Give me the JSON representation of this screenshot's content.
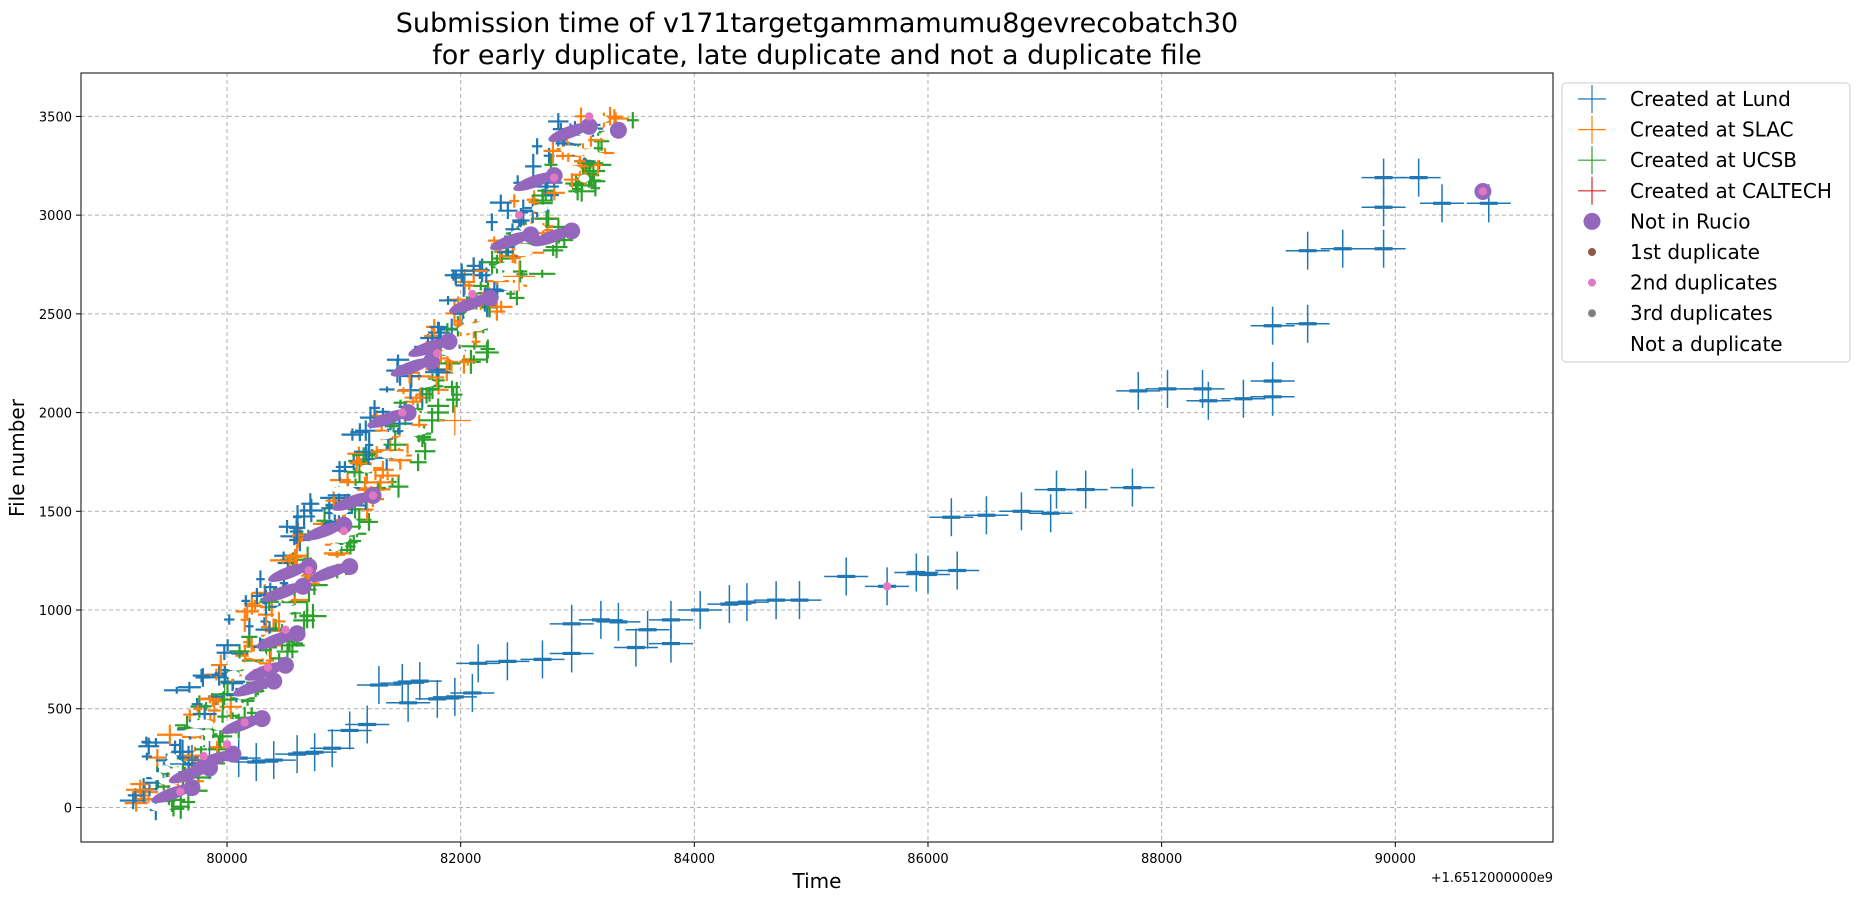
{
  "chart_data": {
    "type": "scatter",
    "title_lines": [
      "Submission time of v171targetgammamumu8gevrecobatch30",
      "for early duplicate, late duplicate and not a duplicate file"
    ],
    "xlabel": "Time",
    "ylabel": "File number",
    "x_offset_label": "+1.6512000000e9",
    "xlim": [
      78750,
      91350
    ],
    "ylim": [
      -175,
      3720
    ],
    "x_ticks": [
      80000,
      82000,
      84000,
      86000,
      88000,
      90000
    ],
    "x_tick_labels": [
      "80000",
      "82000",
      "84000",
      "86000",
      "88000",
      "90000"
    ],
    "y_ticks": [
      0,
      500,
      1000,
      1500,
      2000,
      2500,
      3000,
      3500
    ],
    "y_tick_labels": [
      "0",
      "500",
      "1000",
      "1500",
      "2000",
      "2500",
      "3000",
      "3500"
    ],
    "grid": true,
    "legend_position": "outside-right",
    "colors": {
      "lund": "#1f77b4",
      "slac": "#ff7f0e",
      "ucsb": "#2ca02c",
      "caltech": "#d62728",
      "not_in_rucio": "#9467bd",
      "first_duplicate": "#8c564b",
      "second_duplicate": "#e377c2",
      "third_duplicate": "#7f7f7f",
      "grid": "#b0b0b0"
    },
    "legend": [
      {
        "label": "Created at Lund",
        "marker": "plus",
        "color": "#1f77b4"
      },
      {
        "label": "Created at SLAC",
        "marker": "plus",
        "color": "#ff7f0e"
      },
      {
        "label": "Created at UCSB",
        "marker": "plus",
        "color": "#2ca02c"
      },
      {
        "label": "Created at CALTECH",
        "marker": "plus",
        "color": "#d62728"
      },
      {
        "label": "Not in Rucio",
        "marker": "big-dot",
        "color": "#9467bd"
      },
      {
        "label": "1st duplicate",
        "marker": "dot",
        "color": "#8c564b"
      },
      {
        "label": "2nd duplicates",
        "marker": "dot",
        "color": "#e377c2"
      },
      {
        "label": "3rd duplicates",
        "marker": "dot",
        "color": "#7f7f7f"
      },
      {
        "label": "Not a duplicate",
        "marker": "none",
        "color": "#ffffff"
      }
    ],
    "early_band": {
      "x_start": 79300,
      "x_end": 83200,
      "y_start": 0,
      "y_end": 3500,
      "sites": [
        "lund",
        "slac",
        "ucsb"
      ]
    },
    "late_series": {
      "site": "lund",
      "points": [
        [
          79700,
          220
        ],
        [
          79850,
          240
        ],
        [
          80100,
          250
        ],
        [
          80250,
          230
        ],
        [
          80400,
          240
        ],
        [
          80600,
          270
        ],
        [
          80750,
          280
        ],
        [
          80900,
          300
        ],
        [
          81050,
          390
        ],
        [
          81200,
          420
        ],
        [
          81300,
          620
        ],
        [
          81500,
          630
        ],
        [
          81650,
          640
        ],
        [
          81550,
          530
        ],
        [
          81800,
          550
        ],
        [
          81950,
          560
        ],
        [
          82100,
          580
        ],
        [
          82150,
          730
        ],
        [
          82400,
          740
        ],
        [
          82700,
          750
        ],
        [
          82950,
          780
        ],
        [
          82950,
          930
        ],
        [
          83200,
          950
        ],
        [
          83350,
          940
        ],
        [
          83500,
          810
        ],
        [
          83600,
          900
        ],
        [
          83800,
          950
        ],
        [
          83800,
          830
        ],
        [
          84050,
          1000
        ],
        [
          84300,
          1030
        ],
        [
          84450,
          1040
        ],
        [
          84700,
          1050
        ],
        [
          84900,
          1050
        ],
        [
          85300,
          1170
        ],
        [
          85650,
          1120
        ],
        [
          85900,
          1190
        ],
        [
          86000,
          1180
        ],
        [
          86250,
          1200
        ],
        [
          86200,
          1470
        ],
        [
          86500,
          1480
        ],
        [
          86800,
          1500
        ],
        [
          87050,
          1490
        ],
        [
          87100,
          1610
        ],
        [
          87350,
          1610
        ],
        [
          87750,
          1620
        ],
        [
          87800,
          2110
        ],
        [
          88050,
          2120
        ],
        [
          88350,
          2120
        ],
        [
          88400,
          2060
        ],
        [
          88700,
          2070
        ],
        [
          88950,
          2080
        ],
        [
          88950,
          2160
        ],
        [
          88950,
          2440
        ],
        [
          89250,
          2450
        ],
        [
          89250,
          2820
        ],
        [
          89550,
          2830
        ],
        [
          89900,
          2830
        ],
        [
          89900,
          3040
        ],
        [
          89900,
          3190
        ],
        [
          90200,
          3190
        ],
        [
          90400,
          3060
        ],
        [
          90800,
          3060
        ]
      ]
    },
    "slac_outliers": [
      [
        81950,
        1960
      ],
      [
        82500,
        2690
      ]
    ],
    "not_in_rucio_points": [
      [
        79700,
        100
      ],
      [
        79850,
        200
      ],
      [
        80050,
        270
      ],
      [
        80300,
        450
      ],
      [
        80400,
        640
      ],
      [
        80500,
        720
      ],
      [
        80600,
        880
      ],
      [
        80650,
        1120
      ],
      [
        80700,
        1220
      ],
      [
        81050,
        1220
      ],
      [
        81000,
        1430
      ],
      [
        81250,
        1580
      ],
      [
        81550,
        2000
      ],
      [
        81750,
        2260
      ],
      [
        81900,
        2360
      ],
      [
        82250,
        2580
      ],
      [
        82600,
        2900
      ],
      [
        82950,
        2920
      ],
      [
        82800,
        3200
      ],
      [
        83100,
        3450
      ],
      [
        83350,
        3430
      ],
      [
        90750,
        3120
      ]
    ],
    "second_duplicate_points": [
      [
        79600,
        80
      ],
      [
        79800,
        260
      ],
      [
        80000,
        320
      ],
      [
        80150,
        430
      ],
      [
        80350,
        710
      ],
      [
        80500,
        900
      ],
      [
        80700,
        1200
      ],
      [
        81000,
        1400
      ],
      [
        81250,
        1580
      ],
      [
        81500,
        2000
      ],
      [
        81800,
        2300
      ],
      [
        82100,
        2600
      ],
      [
        82500,
        3000
      ],
      [
        82800,
        3190
      ],
      [
        83100,
        3500
      ],
      [
        85650,
        1120
      ],
      [
        90750,
        3120
      ]
    ]
  }
}
